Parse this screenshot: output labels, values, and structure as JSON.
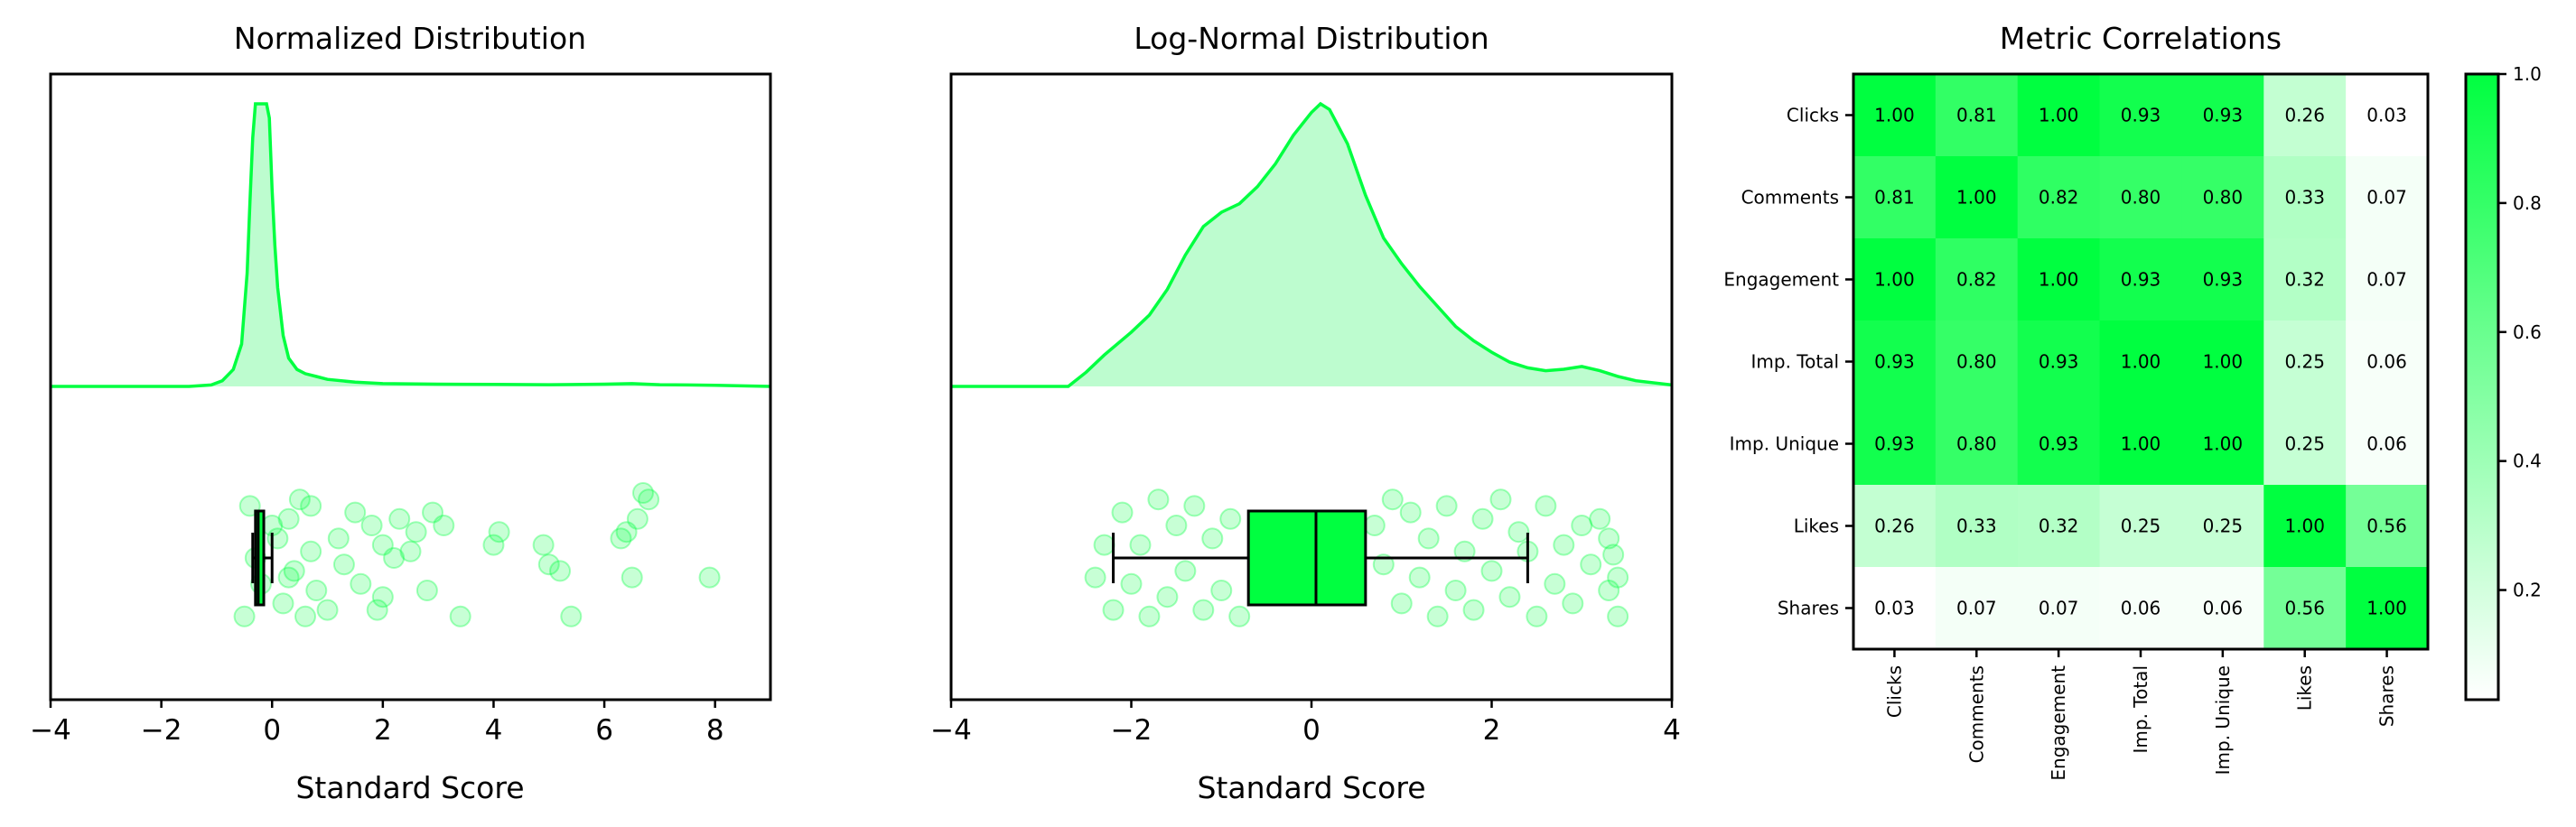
{
  "colors": {
    "accent": "#00ff40",
    "accent_fill": "#bdfccf",
    "axis": "#000000",
    "background": "#ffffff"
  },
  "chart_data": [
    {
      "type": "area",
      "title": "Normalized Distribution",
      "xlabel": "Standard Score",
      "xlim": [
        -4,
        9
      ],
      "xticks": [
        -4,
        -2,
        0,
        2,
        4,
        6,
        8
      ],
      "xtick_labels": [
        "−4",
        "−2",
        "0",
        "2",
        "4",
        "6",
        "8"
      ],
      "kde": {
        "x": [
          -4.0,
          -1.5,
          -1.1,
          -0.9,
          -0.7,
          -0.55,
          -0.45,
          -0.4,
          -0.35,
          -0.3,
          -0.25,
          -0.2,
          -0.15,
          -0.1,
          -0.05,
          0.0,
          0.05,
          0.1,
          0.2,
          0.3,
          0.45,
          0.6,
          0.8,
          1.0,
          1.5,
          2.0,
          3.0,
          4.0,
          5.0,
          6.0,
          6.5,
          7.0,
          8.0,
          9.0
        ],
        "density": [
          0.0,
          0.0,
          0.005,
          0.02,
          0.06,
          0.15,
          0.4,
          0.65,
          0.88,
          1.0,
          1.0,
          1.0,
          1.0,
          1.0,
          0.95,
          0.7,
          0.5,
          0.35,
          0.18,
          0.1,
          0.06,
          0.045,
          0.035,
          0.025,
          0.015,
          0.01,
          0.008,
          0.007,
          0.006,
          0.008,
          0.01,
          0.006,
          0.004,
          0.0
        ]
      },
      "boxplot": {
        "whisker_low": -0.35,
        "q1": -0.3,
        "median": -0.25,
        "q3": -0.15,
        "whisker_high": 0.0
      },
      "points": [
        [
          -0.3,
          0.0
        ],
        [
          -0.2,
          0.4
        ],
        [
          0.1,
          -0.3
        ],
        [
          0.2,
          0.7
        ],
        [
          0.3,
          -0.6
        ],
        [
          0.4,
          0.2
        ],
        [
          0.5,
          -0.9
        ],
        [
          0.6,
          0.9
        ],
        [
          0.7,
          -0.1
        ],
        [
          0.8,
          0.5
        ],
        [
          1.0,
          0.8
        ],
        [
          1.2,
          -0.3
        ],
        [
          1.3,
          0.1
        ],
        [
          1.5,
          -0.7
        ],
        [
          1.6,
          0.4
        ],
        [
          1.8,
          -0.5
        ],
        [
          1.9,
          0.8
        ],
        [
          2.2,
          0.0
        ],
        [
          2.0,
          -0.2
        ],
        [
          2.5,
          -0.1
        ],
        [
          2.6,
          -0.4
        ],
        [
          2.8,
          0.5
        ],
        [
          2.0,
          0.6
        ],
        [
          2.9,
          -0.7
        ],
        [
          3.1,
          -0.5
        ],
        [
          3.4,
          0.9
        ],
        [
          4.0,
          -0.2
        ],
        [
          4.1,
          -0.4
        ],
        [
          4.9,
          -0.2
        ],
        [
          5.0,
          0.1
        ],
        [
          5.2,
          0.2
        ],
        [
          5.4,
          0.9
        ],
        [
          6.3,
          -0.3
        ],
        [
          6.4,
          -0.4
        ],
        [
          6.5,
          0.3
        ],
        [
          6.6,
          -0.6
        ],
        [
          6.7,
          -1.0
        ],
        [
          6.8,
          -0.9
        ],
        [
          7.9,
          0.3
        ],
        [
          2.3,
          -0.6
        ],
        [
          -0.5,
          0.9
        ],
        [
          -0.4,
          -0.8
        ],
        [
          0.0,
          -0.5
        ],
        [
          0.3,
          0.3
        ],
        [
          0.7,
          -0.8
        ]
      ]
    },
    {
      "type": "area",
      "title": "Log-Normal Distribution",
      "xlabel": "Standard Score",
      "xlim": [
        -4,
        4
      ],
      "xticks": [
        -4,
        -2,
        0,
        2,
        4
      ],
      "xtick_labels": [
        "−4",
        "−2",
        "0",
        "2",
        "4"
      ],
      "kde": {
        "x": [
          -4.0,
          -2.7,
          -2.5,
          -2.3,
          -2.0,
          -1.8,
          -1.6,
          -1.4,
          -1.2,
          -1.0,
          -0.8,
          -0.6,
          -0.4,
          -0.2,
          0.0,
          0.1,
          0.2,
          0.4,
          0.6,
          0.8,
          1.0,
          1.2,
          1.4,
          1.6,
          1.8,
          2.0,
          2.2,
          2.4,
          2.6,
          2.8,
          3.0,
          3.2,
          3.4,
          3.6,
          4.0
        ],
        "density": [
          0.0,
          0.0,
          0.05,
          0.11,
          0.19,
          0.25,
          0.34,
          0.46,
          0.56,
          0.61,
          0.64,
          0.7,
          0.78,
          0.88,
          0.96,
          0.99,
          0.97,
          0.85,
          0.67,
          0.52,
          0.43,
          0.35,
          0.28,
          0.21,
          0.16,
          0.12,
          0.085,
          0.065,
          0.055,
          0.06,
          0.07,
          0.055,
          0.035,
          0.02,
          0.005
        ]
      },
      "boxplot": {
        "whisker_low": -2.2,
        "q1": -0.7,
        "median": 0.05,
        "q3": 0.6,
        "whisker_high": 2.4
      },
      "points": [
        [
          3.4,
          0.9
        ],
        [
          3.3,
          0.5
        ],
        [
          3.4,
          0.3
        ],
        [
          3.3,
          -0.3
        ],
        [
          3.2,
          -0.6
        ],
        [
          3.1,
          0.1
        ],
        [
          3.0,
          -0.5
        ],
        [
          2.9,
          0.7
        ],
        [
          2.8,
          -0.2
        ],
        [
          2.7,
          0.4
        ],
        [
          2.6,
          -0.8
        ],
        [
          2.5,
          0.9
        ],
        [
          2.3,
          -0.4
        ],
        [
          2.2,
          0.6
        ],
        [
          2.1,
          -0.9
        ],
        [
          2.0,
          0.2
        ],
        [
          1.9,
          -0.6
        ],
        [
          1.8,
          0.8
        ],
        [
          1.7,
          -0.1
        ],
        [
          1.6,
          0.5
        ],
        [
          1.5,
          -0.8
        ],
        [
          1.4,
          0.9
        ],
        [
          1.3,
          -0.3
        ],
        [
          1.2,
          0.3
        ],
        [
          1.1,
          -0.7
        ],
        [
          1.0,
          0.7
        ],
        [
          0.9,
          -0.9
        ],
        [
          0.8,
          0.1
        ],
        [
          0.7,
          -0.5
        ],
        [
          -2.2,
          0.8
        ],
        [
          -2.1,
          -0.7
        ],
        [
          -2.0,
          0.4
        ],
        [
          -1.9,
          -0.2
        ],
        [
          -1.8,
          0.9
        ],
        [
          -1.7,
          -0.9
        ],
        [
          -1.6,
          0.6
        ],
        [
          -1.5,
          -0.5
        ],
        [
          -1.4,
          0.2
        ],
        [
          -1.3,
          -0.8
        ],
        [
          -1.2,
          0.8
        ],
        [
          -1.1,
          -0.3
        ],
        [
          -1.0,
          0.5
        ],
        [
          -0.9,
          -0.6
        ],
        [
          -0.8,
          0.9
        ],
        [
          -2.3,
          -0.2
        ],
        [
          -2.4,
          0.3
        ],
        [
          2.4,
          -0.1
        ],
        [
          3.35,
          -0.05
        ]
      ]
    },
    {
      "type": "heatmap",
      "title": "Metric Correlations",
      "rows": [
        "Clicks",
        "Comments",
        "Engagement",
        "Imp. Total",
        "Imp. Unique",
        "Likes",
        "Shares"
      ],
      "columns": [
        "Clicks",
        "Comments",
        "Engagement",
        "Imp. Total",
        "Imp. Unique",
        "Likes",
        "Shares"
      ],
      "values": [
        [
          1.0,
          0.81,
          1.0,
          0.93,
          0.93,
          0.26,
          0.03
        ],
        [
          0.81,
          1.0,
          0.82,
          0.8,
          0.8,
          0.33,
          0.07
        ],
        [
          1.0,
          0.82,
          1.0,
          0.93,
          0.93,
          0.32,
          0.07
        ],
        [
          0.93,
          0.8,
          0.93,
          1.0,
          1.0,
          0.25,
          0.06
        ],
        [
          0.93,
          0.8,
          0.93,
          1.0,
          1.0,
          0.25,
          0.06
        ],
        [
          0.26,
          0.33,
          0.32,
          0.25,
          0.25,
          1.0,
          0.56
        ],
        [
          0.03,
          0.07,
          0.07,
          0.06,
          0.06,
          0.56,
          1.0
        ]
      ],
      "colorbar": {
        "vmin": 0.03,
        "vmax": 1.0,
        "ticks": [
          0.2,
          0.4,
          0.6,
          0.8,
          1.0
        ],
        "tick_labels": [
          "0.2",
          "0.4",
          "0.6",
          "0.8",
          "1.0"
        ]
      }
    }
  ]
}
